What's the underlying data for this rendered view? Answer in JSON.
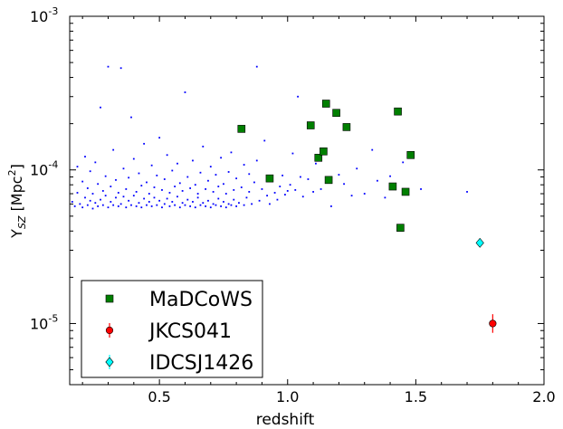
{
  "chart_data": {
    "type": "scatter",
    "xlabel": "redshift",
    "ylabel": "Y",
    "ylabel_sub": "SZ",
    "ylabel_unit": " [Mpc",
    "ylabel_unit_sup": "2",
    "ylabel_close": "]",
    "xlim": [
      0.15,
      2.0
    ],
    "ylim": [
      4e-06,
      0.001
    ],
    "yscale": "log",
    "grid": false,
    "legend_position": "lower-left",
    "x_ticks": [
      {
        "value": 0.5,
        "label": "0.5"
      },
      {
        "value": 1.0,
        "label": "1.0"
      },
      {
        "value": 1.5,
        "label": "1.5"
      },
      {
        "value": 2.0,
        "label": "2.0"
      }
    ],
    "y_ticks": [
      {
        "value": 0.001,
        "base": "10",
        "exp": "-3"
      },
      {
        "value": 0.0001,
        "base": "10",
        "exp": "-4"
      },
      {
        "value": 1e-05,
        "base": "10",
        "exp": "-5"
      }
    ],
    "series": [
      {
        "name": "MaDCoWS",
        "marker": "square",
        "color": "#007f00",
        "points": [
          [
            0.82,
            0.000185
          ],
          [
            0.93,
            8.8e-05
          ],
          [
            1.09,
            0.000195
          ],
          [
            1.12,
            0.00012
          ],
          [
            1.14,
            0.000132
          ],
          [
            1.15,
            0.00027
          ],
          [
            1.16,
            8.6e-05
          ],
          [
            1.19,
            0.000235
          ],
          [
            1.23,
            0.00019
          ],
          [
            1.41,
            7.8e-05
          ],
          [
            1.43,
            0.00024
          ],
          [
            1.44,
            4.2e-05
          ],
          [
            1.46,
            7.2e-05
          ],
          [
            1.48,
            0.000125
          ]
        ]
      },
      {
        "name": "JKCS041",
        "marker": "circle",
        "color": "#ff0000",
        "points": [
          [
            1.8,
            1e-05
          ]
        ],
        "y_err": [
          [
            1.3e-06,
            1.5e-06
          ]
        ]
      },
      {
        "name": "IDCSJ1426",
        "marker": "diamond",
        "color": "#00ffff",
        "points": [
          [
            1.75,
            3.35e-05
          ]
        ],
        "y_err": [
          [
            2e-06,
            2e-06
          ]
        ]
      },
      {
        "marker": "point",
        "color": "#0000ff",
        "points": [
          [
            0.16,
            6.2e-05
          ],
          [
            0.17,
            5.8e-05
          ],
          [
            0.18,
            7.1e-05
          ],
          [
            0.18,
            0.000105
          ],
          [
            0.19,
            6e-05
          ],
          [
            0.2,
            5.7e-05
          ],
          [
            0.2,
            8.4e-05
          ],
          [
            0.21,
            6.6e-05
          ],
          [
            0.21,
            0.000122
          ],
          [
            0.22,
            5.9e-05
          ],
          [
            0.22,
            7.6e-05
          ],
          [
            0.23,
            6.3e-05
          ],
          [
            0.23,
            9.8e-05
          ],
          [
            0.24,
            5.6e-05
          ],
          [
            0.24,
            7e-05
          ],
          [
            0.25,
            6.1e-05
          ],
          [
            0.25,
            0.000112
          ],
          [
            0.26,
            5.8e-05
          ],
          [
            0.26,
            8.1e-05
          ],
          [
            0.27,
            6.4e-05
          ],
          [
            0.27,
            0.000255
          ],
          [
            0.28,
            5.9e-05
          ],
          [
            0.28,
            7.3e-05
          ],
          [
            0.29,
            6.8e-05
          ],
          [
            0.29,
            9.1e-05
          ],
          [
            0.3,
            5.7e-05
          ],
          [
            0.3,
            0.00047
          ],
          [
            0.31,
            6.2e-05
          ],
          [
            0.31,
            7.8e-05
          ],
          [
            0.32,
            5.9e-05
          ],
          [
            0.32,
            0.000135
          ],
          [
            0.33,
            6.6e-05
          ],
          [
            0.33,
            8.6e-05
          ],
          [
            0.34,
            5.8e-05
          ],
          [
            0.34,
            7.1e-05
          ],
          [
            0.35,
            6e-05
          ],
          [
            0.35,
            0.00046
          ],
          [
            0.36,
            6.7e-05
          ],
          [
            0.36,
            0.000102
          ],
          [
            0.37,
            5.7e-05
          ],
          [
            0.37,
            7.5e-05
          ],
          [
            0.38,
            6.3e-05
          ],
          [
            0.38,
            8.9e-05
          ],
          [
            0.39,
            5.9e-05
          ],
          [
            0.39,
            0.00022
          ],
          [
            0.4,
            6.8e-05
          ],
          [
            0.4,
            0.000118
          ],
          [
            0.41,
            5.8e-05
          ],
          [
            0.41,
            7.2e-05
          ],
          [
            0.42,
            6.1e-05
          ],
          [
            0.42,
            9.5e-05
          ],
          [
            0.43,
            5.7e-05
          ],
          [
            0.43,
            7.9e-05
          ],
          [
            0.44,
            6.5e-05
          ],
          [
            0.44,
            0.000148
          ],
          [
            0.45,
            5.9e-05
          ],
          [
            0.45,
            8.3e-05
          ],
          [
            0.46,
            6.2e-05
          ],
          [
            0.46,
            7e-05
          ],
          [
            0.47,
            5.8e-05
          ],
          [
            0.47,
            0.000107
          ],
          [
            0.48,
            6.6e-05
          ],
          [
            0.48,
            7.7e-05
          ],
          [
            0.49,
            5.9e-05
          ],
          [
            0.49,
            9.2e-05
          ],
          [
            0.5,
            6.3e-05
          ],
          [
            0.5,
            0.000162
          ],
          [
            0.51,
            5.7e-05
          ],
          [
            0.51,
            7.4e-05
          ],
          [
            0.52,
            6e-05
          ],
          [
            0.52,
            8.7e-05
          ],
          [
            0.53,
            6.5e-05
          ],
          [
            0.53,
            0.000125
          ],
          [
            0.54,
            5.8e-05
          ],
          [
            0.54,
            7.1e-05
          ],
          [
            0.55,
            6.2e-05
          ],
          [
            0.55,
            9.9e-05
          ],
          [
            0.56,
            5.9e-05
          ],
          [
            0.56,
            7.8e-05
          ],
          [
            0.57,
            6.7e-05
          ],
          [
            0.57,
            0.00011
          ],
          [
            0.58,
            5.7e-05
          ],
          [
            0.58,
            8.2e-05
          ],
          [
            0.59,
            6.1e-05
          ],
          [
            0.59,
            7.3e-05
          ],
          [
            0.6,
            5.9e-05
          ],
          [
            0.6,
            0.00032
          ],
          [
            0.61,
            6.4e-05
          ],
          [
            0.61,
            9e-05
          ],
          [
            0.62,
            5.8e-05
          ],
          [
            0.62,
            7.6e-05
          ],
          [
            0.63,
            6.2e-05
          ],
          [
            0.63,
            0.000115
          ],
          [
            0.64,
            5.7e-05
          ],
          [
            0.64,
            8e-05
          ],
          [
            0.65,
            6.6e-05
          ],
          [
            0.65,
            7e-05
          ],
          [
            0.66,
            5.9e-05
          ],
          [
            0.66,
            9.6e-05
          ],
          [
            0.67,
            6.1e-05
          ],
          [
            0.67,
            0.000142
          ],
          [
            0.68,
            5.8e-05
          ],
          [
            0.68,
            7.5e-05
          ],
          [
            0.69,
            6.3e-05
          ],
          [
            0.69,
            8.5e-05
          ],
          [
            0.7,
            5.7e-05
          ],
          [
            0.7,
            0.000105
          ],
          [
            0.71,
            6e-05
          ],
          [
            0.71,
            7.2e-05
          ],
          [
            0.72,
            5.9e-05
          ],
          [
            0.72,
            9.3e-05
          ],
          [
            0.73,
            6.5e-05
          ],
          [
            0.73,
            7.8e-05
          ],
          [
            0.74,
            5.8e-05
          ],
          [
            0.74,
            0.00012
          ],
          [
            0.75,
            6.2e-05
          ],
          [
            0.75,
            8.1e-05
          ],
          [
            0.76,
            5.7e-05
          ],
          [
            0.76,
            7e-05
          ],
          [
            0.77,
            6e-05
          ],
          [
            0.77,
            9.7e-05
          ],
          [
            0.78,
            5.9e-05
          ],
          [
            0.78,
            0.00013
          ],
          [
            0.79,
            6.4e-05
          ],
          [
            0.79,
            7.4e-05
          ],
          [
            0.8,
            5.8e-05
          ],
          [
            0.8,
            8.8e-05
          ],
          [
            0.81,
            6.1e-05
          ],
          [
            0.82,
            7.7e-05
          ],
          [
            0.83,
            5.9e-05
          ],
          [
            0.83,
            0.000108
          ],
          [
            0.84,
            6.6e-05
          ],
          [
            0.85,
            7.2e-05
          ],
          [
            0.85,
            9.4e-05
          ],
          [
            0.86,
            6e-05
          ],
          [
            0.87,
            8.3e-05
          ],
          [
            0.88,
            0.000115
          ],
          [
            0.88,
            0.00047
          ],
          [
            0.89,
            6.3e-05
          ],
          [
            0.9,
            7.5e-05
          ],
          [
            0.91,
            0.000155
          ],
          [
            0.92,
            6.8e-05
          ],
          [
            0.93,
            6e-05
          ],
          [
            0.94,
            8.5e-05
          ],
          [
            0.95,
            7.1e-05
          ],
          [
            0.96,
            6.4e-05
          ],
          [
            0.97,
            7.8e-05
          ],
          [
            0.98,
            9.2e-05
          ],
          [
            0.99,
            6.9e-05
          ],
          [
            1.0,
            7.3e-05
          ],
          [
            1.01,
            8e-05
          ],
          [
            1.02,
            0.000128
          ],
          [
            1.03,
            7.4e-05
          ],
          [
            1.04,
            0.0003
          ],
          [
            1.05,
            9e-05
          ],
          [
            1.06,
            6.7e-05
          ],
          [
            1.08,
            8.7e-05
          ],
          [
            1.1,
            7.2e-05
          ],
          [
            1.11,
            0.00011
          ],
          [
            1.13,
            7.5e-05
          ],
          [
            1.17,
            5.8e-05
          ],
          [
            1.2,
            9.3e-05
          ],
          [
            1.22,
            8.1e-05
          ],
          [
            1.25,
            6.8e-05
          ],
          [
            1.27,
            0.000102
          ],
          [
            1.3,
            7e-05
          ],
          [
            1.33,
            0.000135
          ],
          [
            1.35,
            8.5e-05
          ],
          [
            1.38,
            6.6e-05
          ],
          [
            1.4,
            9.1e-05
          ],
          [
            1.45,
            0.000112
          ],
          [
            1.52,
            7.5e-05
          ],
          [
            1.7,
            7.2e-05
          ]
        ]
      }
    ]
  }
}
